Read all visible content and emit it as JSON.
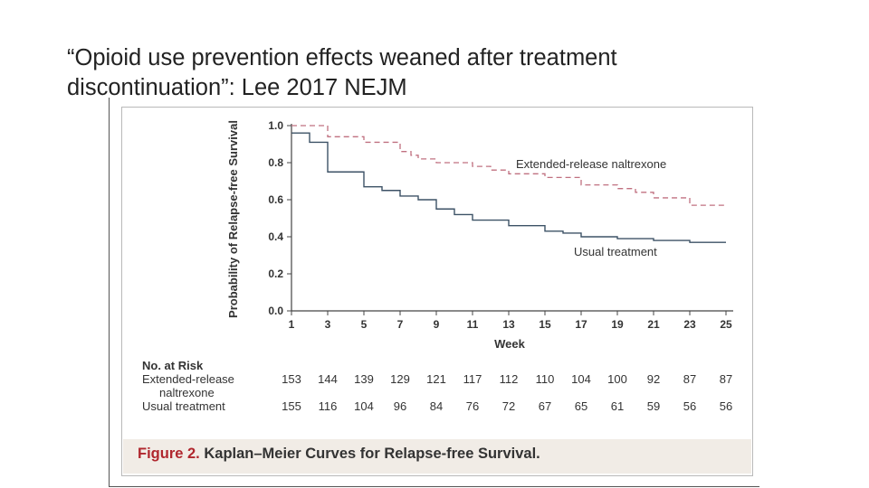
{
  "slide": {
    "title": "“Opioid use prevention effects weaned after treatment discontinuation”: Lee 2017 NEJM"
  },
  "caption": {
    "label": "Figure 2.",
    "text": "Kaplan–Meier Curves for Relapse-free Survival."
  },
  "colors": {
    "extended": "#c07080",
    "usual": "#3d5266",
    "axis": "#444444"
  },
  "chart_data": {
    "type": "line",
    "subtype": "kaplan-meier-step",
    "title": "Kaplan–Meier Curves for Relapse-free Survival.",
    "xlabel": "Week",
    "ylabel": "Probability of Relapse-free Survival",
    "xlim": [
      1,
      25
    ],
    "ylim": [
      0.0,
      1.0
    ],
    "x_ticks": [
      1,
      3,
      5,
      7,
      9,
      11,
      13,
      15,
      17,
      19,
      21,
      23,
      25
    ],
    "y_ticks": [
      "0.0",
      "0.2",
      "0.4",
      "0.6",
      "0.8",
      "1.0"
    ],
    "series": [
      {
        "name": "Extended-release naltrexone",
        "style": "dashed",
        "steps": [
          [
            1,
            1.0
          ],
          [
            3,
            0.94
          ],
          [
            5,
            0.91
          ],
          [
            7,
            0.86
          ],
          [
            7.6,
            0.84
          ],
          [
            8,
            0.82
          ],
          [
            9,
            0.8
          ],
          [
            11,
            0.78
          ],
          [
            12,
            0.76
          ],
          [
            13,
            0.74
          ],
          [
            15,
            0.72
          ],
          [
            17,
            0.68
          ],
          [
            19,
            0.66
          ],
          [
            20,
            0.64
          ],
          [
            21,
            0.61
          ],
          [
            23,
            0.57
          ],
          [
            25,
            0.57
          ]
        ]
      },
      {
        "name": "Usual treatment",
        "style": "solid",
        "steps": [
          [
            1,
            0.96
          ],
          [
            2,
            0.91
          ],
          [
            3,
            0.75
          ],
          [
            5,
            0.67
          ],
          [
            6,
            0.65
          ],
          [
            7,
            0.62
          ],
          [
            8,
            0.6
          ],
          [
            9,
            0.55
          ],
          [
            10,
            0.52
          ],
          [
            11,
            0.49
          ],
          [
            13,
            0.46
          ],
          [
            15,
            0.43
          ],
          [
            16,
            0.42
          ],
          [
            17,
            0.4
          ],
          [
            19,
            0.39
          ],
          [
            21,
            0.38
          ],
          [
            23,
            0.37
          ],
          [
            25,
            0.37
          ]
        ]
      }
    ],
    "risk_table": {
      "heading": "No. at Risk",
      "rows": [
        {
          "label_line1": "Extended-release",
          "label_line2": "naltrexone",
          "values": [
            153,
            144,
            139,
            129,
            121,
            117,
            112,
            110,
            104,
            100,
            92,
            87,
            87
          ]
        },
        {
          "label_line1": "Usual treatment",
          "label_line2": "",
          "values": [
            155,
            116,
            104,
            96,
            84,
            76,
            72,
            67,
            65,
            61,
            59,
            56,
            56
          ]
        }
      ]
    }
  }
}
